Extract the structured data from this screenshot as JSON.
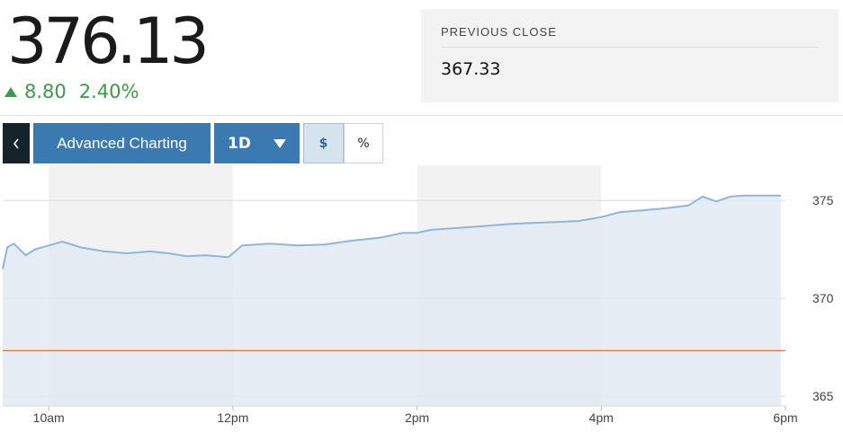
{
  "quote": {
    "price": "376.13",
    "change": "8.80",
    "change_percent": "2.40%",
    "direction_icon": "triangle-up-icon",
    "change_color": "#3d9a4a"
  },
  "previous_close": {
    "label": "PREVIOUS CLOSE",
    "value": "367.33"
  },
  "toolbar": {
    "back_icon": "chevron-left-icon",
    "advanced_label": "Advanced Charting",
    "range_label": "1D",
    "range_icon": "caret-down-icon",
    "dollar_label": "$",
    "percent_label": "%"
  },
  "chart_data": {
    "type": "area",
    "title": "",
    "xlabel": "",
    "ylabel": "",
    "x_ticks": [
      "10am",
      "12pm",
      "2pm",
      "4pm",
      "6pm"
    ],
    "y_ticks": [
      "375",
      "370",
      "365"
    ],
    "ylim": [
      364.5,
      376.8
    ],
    "x_range_hours": [
      9.5,
      18
    ],
    "grid": true,
    "reference_line": {
      "label": "previous close",
      "value": 367.33,
      "color": "#d9793c"
    },
    "series": [
      {
        "color": "#8fb6da",
        "fill": "#e0e9f2",
        "points": [
          [
            9.5,
            371.5
          ],
          [
            9.55,
            372.6
          ],
          [
            9.62,
            372.8
          ],
          [
            9.75,
            372.2
          ],
          [
            9.85,
            372.5
          ],
          [
            10.0,
            372.7
          ],
          [
            10.15,
            372.9
          ],
          [
            10.35,
            372.6
          ],
          [
            10.6,
            372.4
          ],
          [
            10.85,
            372.3
          ],
          [
            11.1,
            372.4
          ],
          [
            11.3,
            372.3
          ],
          [
            11.5,
            372.15
          ],
          [
            11.7,
            372.2
          ],
          [
            11.95,
            372.1
          ],
          [
            12.1,
            372.7
          ],
          [
            12.4,
            372.8
          ],
          [
            12.7,
            372.7
          ],
          [
            13.0,
            372.75
          ],
          [
            13.3,
            372.95
          ],
          [
            13.6,
            373.1
          ],
          [
            13.85,
            373.35
          ],
          [
            14.0,
            373.35
          ],
          [
            14.15,
            373.5
          ],
          [
            14.45,
            373.6
          ],
          [
            14.75,
            373.7
          ],
          [
            15.0,
            373.8
          ],
          [
            15.25,
            373.85
          ],
          [
            15.5,
            373.9
          ],
          [
            15.75,
            373.95
          ],
          [
            16.0,
            374.15
          ],
          [
            16.2,
            374.4
          ],
          [
            16.45,
            374.5
          ],
          [
            16.7,
            374.6
          ],
          [
            16.95,
            374.75
          ],
          [
            17.1,
            375.2
          ],
          [
            17.25,
            374.95
          ],
          [
            17.4,
            375.2
          ],
          [
            17.55,
            375.25
          ],
          [
            17.7,
            375.25
          ],
          [
            17.95,
            375.25
          ]
        ]
      }
    ]
  }
}
